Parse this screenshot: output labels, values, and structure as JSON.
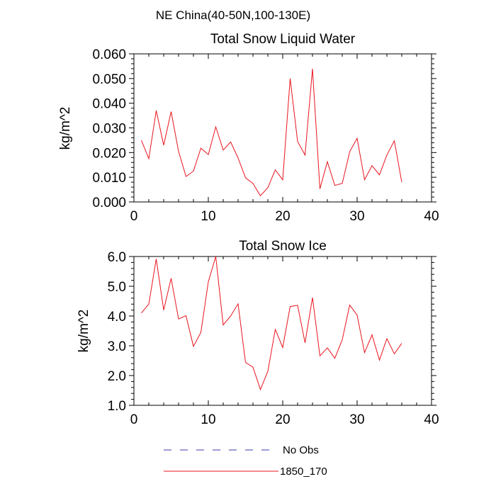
{
  "figure": {
    "main_title": "NE China(40-50N,100-130E)"
  },
  "chart_data": [
    {
      "type": "line",
      "title": "Total Snow Liquid Water",
      "xlabel": "",
      "ylabel": "kg/m^2",
      "xlim": [
        0,
        40
      ],
      "ylim": [
        0.0,
        0.06
      ],
      "xticks": [
        0,
        10,
        20,
        30,
        40
      ],
      "xtick_labels": [
        "0",
        "10",
        "20",
        "30",
        "40"
      ],
      "yticks": [
        0.0,
        0.01,
        0.02,
        0.03,
        0.04,
        0.05,
        0.06
      ],
      "ytick_labels": [
        "0.000",
        "0.010",
        "0.020",
        "0.030",
        "0.040",
        "0.050",
        "0.060"
      ],
      "grid": false,
      "series": [
        {
          "name": "1850_170",
          "color": "#e8141e",
          "x": [
            1,
            2,
            3,
            4,
            5,
            6,
            7,
            8,
            9,
            10,
            11,
            12,
            13,
            14,
            15,
            16,
            17,
            18,
            19,
            20,
            21,
            22,
            23,
            24,
            25,
            26,
            27,
            28,
            29,
            30,
            31,
            32,
            33,
            34,
            35,
            36
          ],
          "values": [
            0.025,
            0.0175,
            0.037,
            0.023,
            0.0366,
            0.0205,
            0.0103,
            0.0125,
            0.0218,
            0.0192,
            0.0304,
            0.021,
            0.0243,
            0.0178,
            0.0098,
            0.0075,
            0.0025,
            0.0058,
            0.013,
            0.009,
            0.05,
            0.0245,
            0.019,
            0.054,
            0.0053,
            0.0163,
            0.0067,
            0.0075,
            0.0203,
            0.0258,
            0.009,
            0.0147,
            0.011,
            0.019,
            0.0248,
            0.008
          ]
        }
      ]
    },
    {
      "type": "line",
      "title": "Total Snow Ice",
      "xlabel": "",
      "ylabel": "kg/m^2",
      "xlim": [
        0,
        40
      ],
      "ylim": [
        1.0,
        6.0
      ],
      "xticks": [
        0,
        10,
        20,
        30,
        40
      ],
      "xtick_labels": [
        "0",
        "10",
        "20",
        "30",
        "40"
      ],
      "yticks": [
        1.0,
        2.0,
        3.0,
        4.0,
        5.0,
        6.0
      ],
      "ytick_labels": [
        "1.0",
        "2.0",
        "3.0",
        "4.0",
        "5.0",
        "6.0"
      ],
      "grid": false,
      "series": [
        {
          "name": "1850_170",
          "color": "#e8141e",
          "x": [
            1,
            2,
            3,
            4,
            5,
            6,
            7,
            8,
            9,
            10,
            11,
            12,
            13,
            14,
            15,
            16,
            17,
            18,
            19,
            20,
            21,
            22,
            23,
            24,
            25,
            26,
            27,
            28,
            29,
            30,
            31,
            32,
            33,
            34,
            35,
            36
          ],
          "values": [
            4.1,
            4.4,
            5.92,
            4.2,
            5.27,
            3.9,
            4.01,
            2.98,
            3.45,
            5.15,
            6.0,
            3.7,
            4.0,
            4.41,
            2.44,
            2.28,
            1.53,
            2.14,
            3.55,
            2.94,
            4.32,
            4.36,
            3.1,
            4.62,
            2.66,
            2.93,
            2.58,
            3.2,
            4.37,
            4.03,
            2.77,
            3.37,
            2.52,
            3.24,
            2.73,
            3.08
          ]
        }
      ]
    }
  ],
  "legend": {
    "placement": "bottom-center",
    "items": [
      {
        "label": "No Obs",
        "color": "#3a3ab0",
        "style": "dashed"
      },
      {
        "label": "1850_170",
        "color": "#e8141e",
        "style": "solid"
      }
    ]
  }
}
